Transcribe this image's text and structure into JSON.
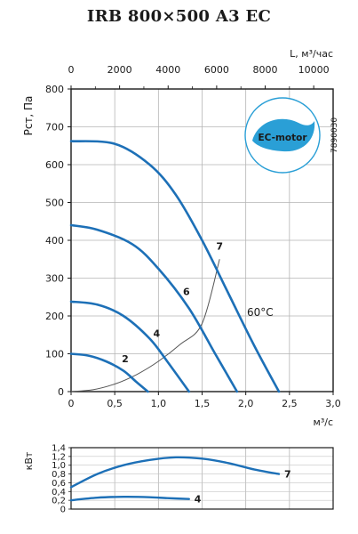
{
  "title": "IRB 800×500 A3 EC",
  "code": "7890030",
  "badge": {
    "text": "EC-motor",
    "color": "#2a9fd6"
  },
  "chart_data": [
    {
      "type": "line",
      "ylabel": "Рст, Па",
      "xlabel": "м³/с",
      "top_axis_label": "L, м³/час",
      "xlim": [
        0,
        3.0
      ],
      "ylim": [
        0,
        800
      ],
      "x_ticks": [
        "0",
        "0,5",
        "1,0",
        "1,5",
        "2,0",
        "2,5",
        "3,0"
      ],
      "y_ticks": [
        "0",
        "100",
        "200",
        "300",
        "400",
        "500",
        "600",
        "700",
        "800"
      ],
      "top_ticks": [
        "0",
        "2000",
        "4000",
        "6000",
        "8000",
        "10000"
      ],
      "top_ticks_m3h": [
        0,
        2000,
        4000,
        6000,
        8000,
        10000
      ],
      "grid": true,
      "temp_label": "60°C",
      "series": [
        {
          "name": "2",
          "color": "#1d70b7",
          "x": [
            0,
            0.2,
            0.4,
            0.6,
            0.75,
            0.88
          ],
          "y": [
            100,
            95,
            80,
            55,
            25,
            0
          ]
        },
        {
          "name": "4",
          "color": "#1d70b7",
          "x": [
            0,
            0.3,
            0.6,
            0.9,
            1.1,
            1.35
          ],
          "y": [
            238,
            230,
            200,
            140,
            80,
            0
          ]
        },
        {
          "name": "6",
          "color": "#1d70b7",
          "x": [
            0,
            0.3,
            0.7,
            1.0,
            1.35,
            1.65,
            1.9
          ],
          "y": [
            440,
            428,
            390,
            325,
            220,
            100,
            0
          ]
        },
        {
          "name": "7",
          "color": "#1d70b7",
          "x": [
            0,
            0.5,
            0.9,
            1.2,
            1.5,
            1.8,
            2.1,
            2.38
          ],
          "y": [
            662,
            655,
            600,
            520,
            400,
            260,
            120,
            0
          ]
        }
      ],
      "system_curve": {
        "color": "#555555",
        "x": [
          0,
          0.25,
          0.5,
          0.75,
          1.0,
          1.25,
          1.5,
          1.7
        ],
        "y": [
          0,
          5,
          20,
          45,
          80,
          125,
          180,
          350
        ]
      },
      "curve_labels": [
        {
          "text": "2",
          "x": 0.62,
          "y": 78
        },
        {
          "text": "4",
          "x": 0.98,
          "y": 145
        },
        {
          "text": "6",
          "x": 1.32,
          "y": 255
        },
        {
          "text": "7",
          "x": 1.7,
          "y": 375
        }
      ]
    },
    {
      "type": "line",
      "ylabel": "кВт",
      "xlim": [
        0,
        3.0
      ],
      "ylim": [
        0,
        1.4
      ],
      "y_ticks": [
        "0",
        "0,2",
        "0,4",
        "0,6",
        "0,8",
        "1,0",
        "1,2",
        "1,4"
      ],
      "grid": true,
      "series": [
        {
          "name": "7",
          "color": "#1d70b7",
          "x": [
            0,
            0.3,
            0.6,
            0.9,
            1.2,
            1.5,
            1.8,
            2.1,
            2.38
          ],
          "y": [
            0.5,
            0.8,
            1.0,
            1.12,
            1.18,
            1.15,
            1.05,
            0.9,
            0.8
          ]
        },
        {
          "name": "4",
          "color": "#1d70b7",
          "x": [
            0,
            0.3,
            0.6,
            0.9,
            1.1,
            1.35
          ],
          "y": [
            0.2,
            0.26,
            0.28,
            0.27,
            0.25,
            0.23
          ]
        }
      ]
    }
  ]
}
